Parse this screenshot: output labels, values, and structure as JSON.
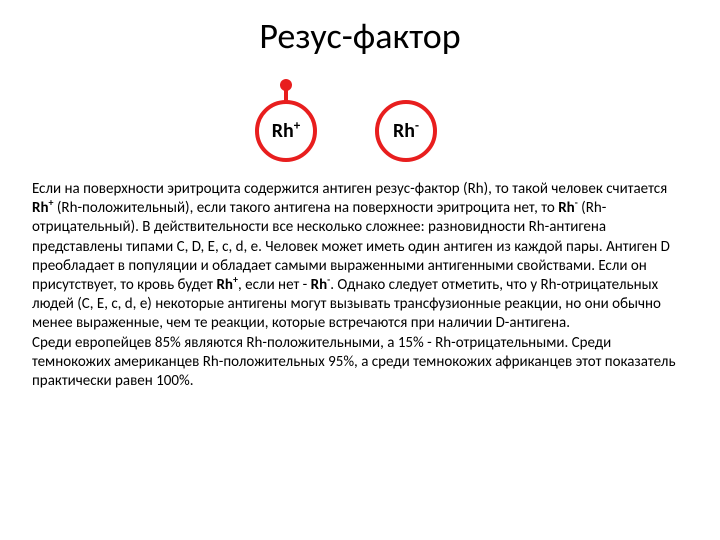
{
  "slide": {
    "title": "Резус-фактор",
    "diagram": {
      "accent_color": "#e81e1e",
      "rh_pos": {
        "label_base": "Rh",
        "label_sup": "+"
      },
      "rh_neg": {
        "label_base": "Rh",
        "label_sup": "-"
      }
    },
    "paragraph1_html": "Если на поверхности эритроцита содержится антиген резус-фактор (Rh), то такой человек считается <span class='b'>Rh<sup>+</sup></span> (Rh-положительный), если такого антигена на поверхности эритроцита нет, то <span class='b'>Rh<sup>-</sup></span> (Rh-отрицательный). В действительности все несколько сложнее: разновидности Rh-антигена представлены типами C, D, E, c, d, e. Человек может иметь один антиген из каждой пары. Антиген D преобладает в популяции и обладает самыми выраженными антигенными свойствами. Если он присутствует, то кровь будет <span class='b'>Rh<sup>+</sup></span>, если нет - <span class='b'>Rh<sup>-</sup></span>. Однако следует отметить, что у Rh-отрицательных людей (C, E, c, d, e) некоторые антигены могут вызывать трансфузионные реакции, но они обычно менее выраженные, чем те реакции, которые встречаются при наличии D-антигена.",
    "paragraph2_html": "Среди европейцев 85% являются Rh-положительными, а 15% - Rh-отрицательными. Среди темнокожих американцев Rh-положительных 95%, а среди темнокожих африканцев этот показатель практически равен 100%."
  }
}
